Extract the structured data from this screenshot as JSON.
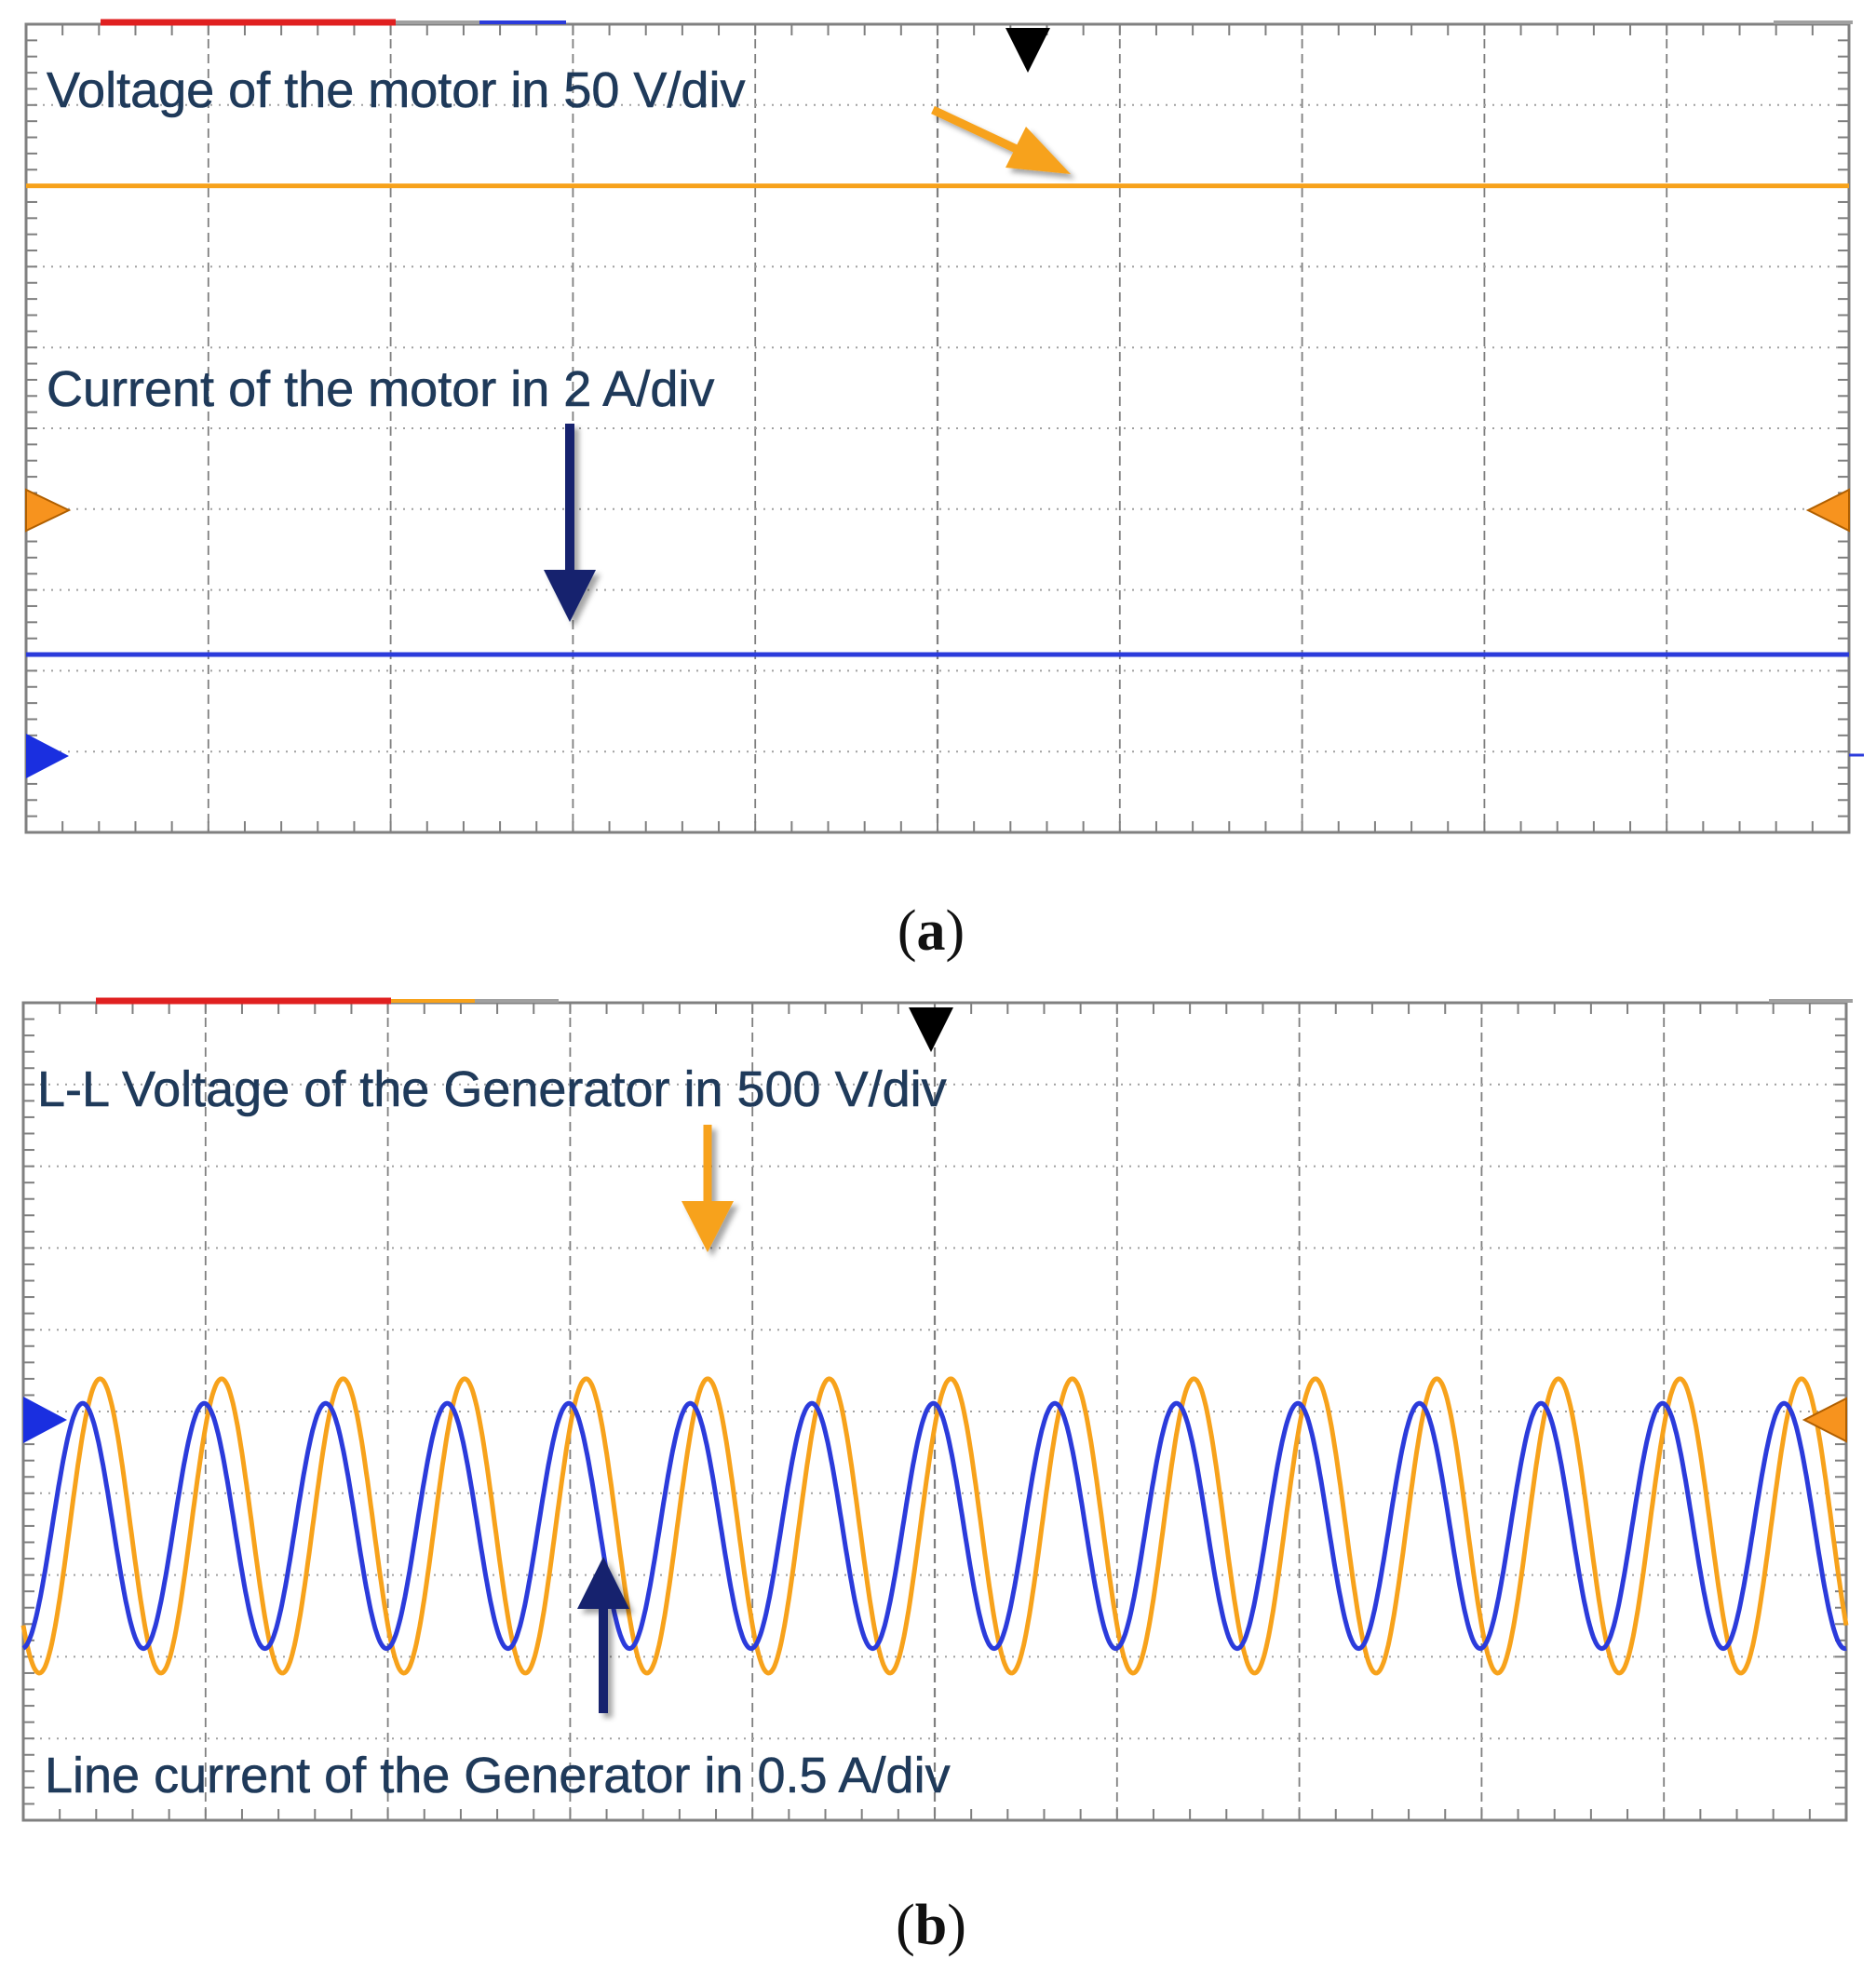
{
  "figure": {
    "panels": [
      {
        "id": "a",
        "caption": "a",
        "annotations": {
          "voltage": "Voltage of the motor in 50 V/div",
          "current": "Current of the motor in 2 A/div"
        }
      },
      {
        "id": "b",
        "caption": "b",
        "annotations": {
          "voltage": "L-L Voltage of the Generator in 500 V/div",
          "current": "Line current of the Generator in 0.5 A/div"
        }
      }
    ],
    "colors": {
      "voltage_trace": "#f7a21b",
      "current_trace": "#2b3bdb",
      "voltage_arrow": "#f7a21b",
      "current_arrow": "#16206e",
      "grid_major": "#7f7f7f",
      "grid_minor": "#a0a0a0",
      "frame": "#808080",
      "indicator_red": "#e02020"
    }
  },
  "chart_data": [
    {
      "type": "line",
      "panel": "a",
      "grid": {
        "x_divisions": 10,
        "y_divisions": 10
      },
      "ylim": [
        0,
        10
      ],
      "xlim": [
        0,
        10
      ],
      "series": [
        {
          "x": [
            0,
            10
          ],
          "y": [
            8.0,
            8.0
          ],
          "color": "#f7a21b"
        },
        {
          "x": [
            0,
            10
          ],
          "y": [
            2.2,
            2.2
          ],
          "color": "#2b3bdb"
        }
      ]
    },
    {
      "type": "line",
      "panel": "b",
      "grid": {
        "x_divisions": 10,
        "y_divisions": 10
      },
      "ylim": [
        0,
        10
      ],
      "xlim": [
        0,
        10
      ],
      "series": [
        {
          "offset": 3.6,
          "amplitude": 1.8,
          "cycles": 15,
          "phase": -2.4,
          "color": "#f7a21b"
        },
        {
          "offset": 3.6,
          "amplitude": 1.5,
          "cycles": 15,
          "phase": -1.5,
          "color": "#2b3bdb"
        }
      ]
    }
  ]
}
